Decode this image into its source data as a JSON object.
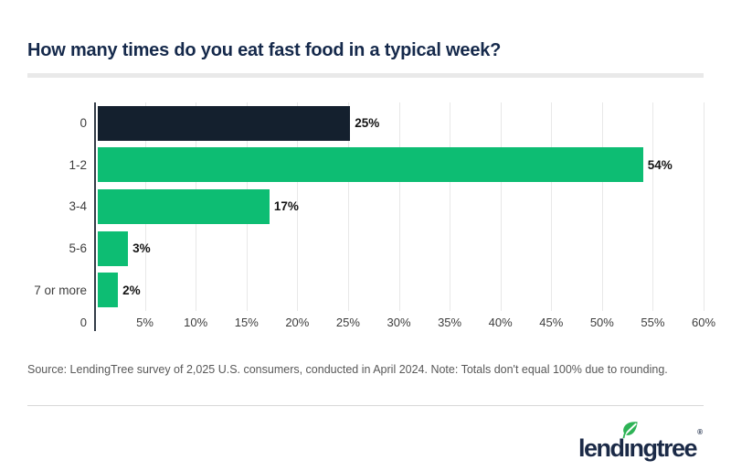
{
  "header": {
    "title": "How many times do you eat fast food in a typical week?"
  },
  "chart_data": {
    "type": "bar",
    "orientation": "horizontal",
    "title": "How many times do you eat fast food in a typical week?",
    "categories": [
      "0",
      "1-2",
      "3-4",
      "5-6",
      "7 or more"
    ],
    "values": [
      25,
      54,
      17,
      3,
      2
    ],
    "value_labels": [
      "25%",
      "54%",
      "17%",
      "3%",
      "2%"
    ],
    "xlim": [
      0,
      60
    ],
    "x_tick_step": 5,
    "x_tick_labels": [
      "0",
      "5%",
      "10%",
      "15%",
      "20%",
      "25%",
      "30%",
      "35%",
      "40%",
      "45%",
      "50%",
      "55%",
      "60%"
    ],
    "grid": true,
    "legend": "none",
    "xlabel": "",
    "ylabel": "",
    "bar_colors": [
      "#14202e",
      "#0dbd73",
      "#0dbd73",
      "#0dbd73",
      "#0dbd73"
    ]
  },
  "footer": {
    "source_note": "Source: LendingTree survey of 2,025 U.S. consumers, conducted in April 2024. Note: Totals don't equal 100% due to rounding.",
    "logo": {
      "name": "lendingtree",
      "part1": "lend",
      "part2": "ı",
      "part3": "ngtree",
      "trademark": "®"
    }
  },
  "colors": {
    "accent_navy": "#14202e",
    "accent_green": "#0dbd73",
    "title_navy": "#15294b",
    "leaf_green": "#2eb356"
  }
}
